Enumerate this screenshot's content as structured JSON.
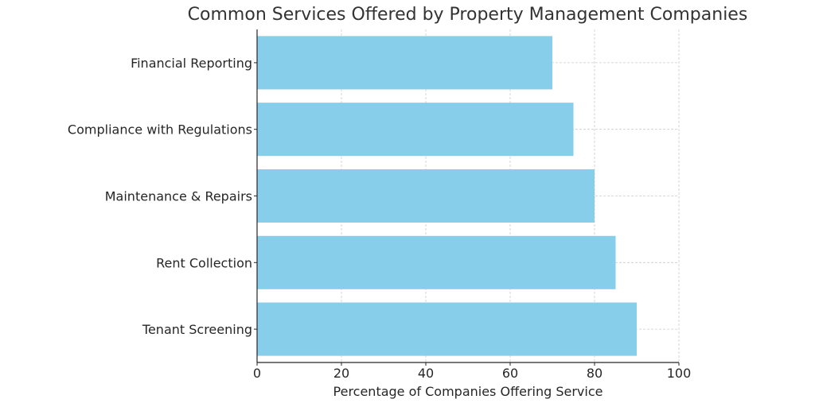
{
  "chart_data": {
    "type": "bar",
    "orientation": "horizontal",
    "title": "Common Services Offered by Property Management Companies",
    "xlabel": "Percentage of Companies Offering Service",
    "ylabel": "",
    "categories": [
      "Tenant Screening",
      "Rent Collection",
      "Maintenance & Repairs",
      "Compliance with Regulations",
      "Financial Reporting"
    ],
    "values": [
      90,
      85,
      80,
      75,
      70
    ],
    "xlim": [
      0,
      100
    ],
    "xticks": [
      "0",
      "20",
      "40",
      "60",
      "80",
      "100"
    ],
    "grid": true,
    "bar_color": "#87ceeb",
    "grid_color": "#cccccc"
  }
}
